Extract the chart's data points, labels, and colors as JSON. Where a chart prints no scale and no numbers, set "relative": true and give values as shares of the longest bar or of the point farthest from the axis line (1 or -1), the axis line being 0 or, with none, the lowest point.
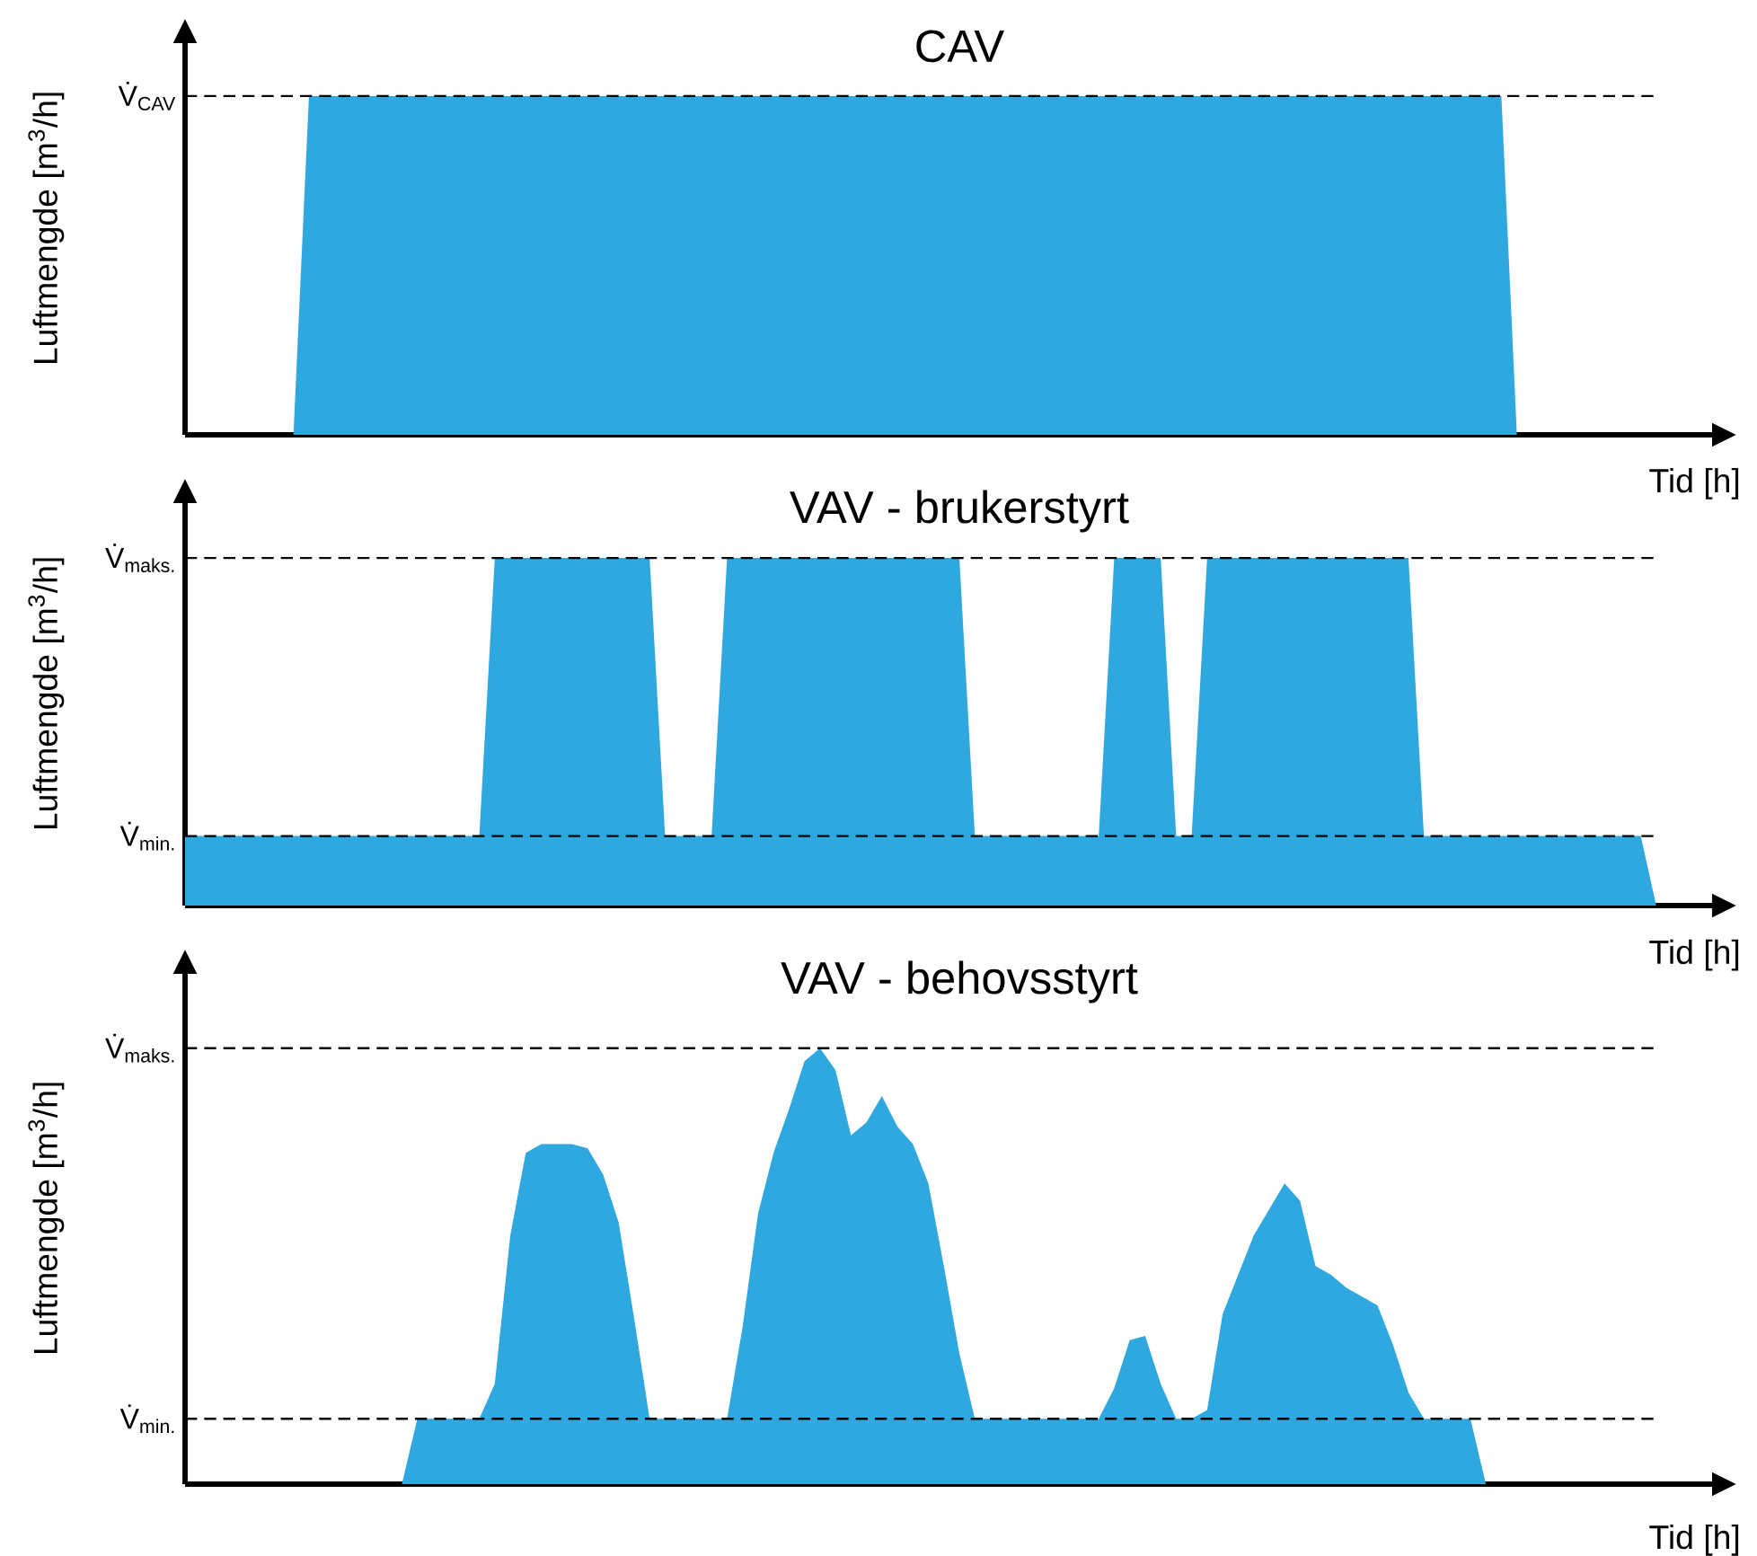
{
  "chart_data": [
    {
      "type": "area",
      "title": "CAV",
      "xlabel": "Tid [h]",
      "ylabel": "Luftmengde [m$^{3}$/h]",
      "relative": true,
      "color": "#2ea8df",
      "categories": [
        null,
        null,
        null,
        null,
        null,
        null,
        null,
        null,
        null,
        null,
        null,
        null,
        null,
        null,
        null,
        null,
        null,
        null,
        null,
        null,
        null,
        null,
        null,
        null,
        null,
        null,
        null,
        null,
        null,
        null,
        null,
        null,
        null,
        null,
        null,
        null,
        null,
        null,
        null,
        null,
        null,
        null,
        null,
        null,
        null,
        null,
        null,
        null,
        null,
        null,
        null,
        null,
        null,
        null,
        null,
        null,
        null,
        null,
        null,
        null,
        null,
        null,
        null,
        null,
        null,
        null,
        null,
        null,
        null,
        null,
        null,
        null,
        null,
        null,
        null,
        null,
        null,
        null,
        null,
        null,
        null,
        null,
        null,
        null,
        null,
        null,
        null,
        null,
        null,
        null,
        null,
        null,
        null,
        null,
        null,
        null
      ],
      "values": [
        0,
        0,
        0,
        0,
        0,
        0,
        0,
        0,
        1,
        1,
        1,
        1,
        1,
        1,
        1,
        1,
        1,
        1,
        1,
        1,
        1,
        1,
        1,
        1,
        1,
        1,
        1,
        1,
        1,
        1,
        1,
        1,
        1,
        1,
        1,
        1,
        1,
        1,
        1,
        1,
        1,
        1,
        1,
        1,
        1,
        1,
        1,
        1,
        1,
        1,
        1,
        1,
        1,
        1,
        1,
        1,
        1,
        1,
        1,
        1,
        1,
        1,
        1,
        1,
        1,
        1,
        1,
        1,
        1,
        1,
        1,
        1,
        1,
        1,
        1,
        1,
        1,
        1,
        1,
        1,
        1,
        1,
        1,
        1,
        1,
        1,
        0,
        0,
        0,
        0,
        0,
        0,
        0,
        0,
        0,
        0
      ],
      "ref_lines": [
        {
          "axis": "y",
          "value": 1,
          "label": "V̇$_{CAV}$",
          "line_style": "dashed"
        }
      ]
    },
    {
      "type": "area",
      "title": "VAV - brukerstyrt",
      "xlabel": "Tid [h]",
      "ylabel": "Luftmengde [m$^{3}$/h]",
      "relative": true,
      "color": "#2ea8df",
      "categories": [
        null,
        null,
        null,
        null,
        null,
        null,
        null,
        null,
        null,
        null,
        null,
        null,
        null,
        null,
        null,
        null,
        null,
        null,
        null,
        null,
        null,
        null,
        null,
        null,
        null,
        null,
        null,
        null,
        null,
        null,
        null,
        null,
        null,
        null,
        null,
        null,
        null,
        null,
        null,
        null,
        null,
        null,
        null,
        null,
        null,
        null,
        null,
        null,
        null,
        null,
        null,
        null,
        null,
        null,
        null,
        null,
        null,
        null,
        null,
        null,
        null,
        null,
        null,
        null,
        null,
        null,
        null,
        null,
        null,
        null,
        null,
        null,
        null,
        null,
        null,
        null,
        null,
        null,
        null,
        null,
        null,
        null,
        null,
        null,
        null,
        null,
        null,
        null,
        null,
        null,
        null,
        null,
        null,
        null,
        null,
        null
      ],
      "values": [
        0.2,
        0.2,
        0.2,
        0.2,
        0.2,
        0.2,
        0.2,
        0.2,
        0.2,
        0.2,
        0.2,
        0.2,
        0.2,
        0.2,
        0.2,
        0.2,
        0.2,
        0.2,
        0.2,
        0.2,
        1,
        1,
        1,
        1,
        1,
        1,
        1,
        1,
        1,
        1,
        1,
        0.2,
        0.2,
        0.2,
        0.2,
        1,
        1,
        1,
        1,
        1,
        1,
        1,
        1,
        1,
        1,
        1,
        1,
        1,
        1,
        1,
        1,
        0.2,
        0.2,
        0.2,
        0.2,
        0.2,
        0.2,
        0.2,
        0.2,
        0.2,
        1,
        1,
        1,
        1,
        0.2,
        0.2,
        1,
        1,
        1,
        1,
        1,
        1,
        1,
        1,
        1,
        1,
        1,
        1,
        1,
        1,
        0.2,
        0.2,
        0.2,
        0.2,
        0.2,
        0.2,
        0.2,
        0.2,
        0.2,
        0.2,
        0.2,
        0.2,
        0.2,
        0.2,
        0.2,
        0
      ],
      "ref_lines": [
        {
          "axis": "y",
          "value": 1,
          "label": "V̇$_{maks.}$",
          "line_style": "dashed"
        },
        {
          "axis": "y",
          "value": 0.2,
          "label": "V̇$_{min.}$",
          "line_style": "dashed"
        }
      ]
    },
    {
      "type": "area",
      "title": "VAV - behovsstyrt",
      "xlabel": "Tid [h]",
      "ylabel": "Luftmengde [m$^{3}$/h]",
      "relative": true,
      "color": "#2ea8df",
      "categories": [
        null,
        null,
        null,
        null,
        null,
        null,
        null,
        null,
        null,
        null,
        null,
        null,
        null,
        null,
        null,
        null,
        null,
        null,
        null,
        null,
        null,
        null,
        null,
        null,
        null,
        null,
        null,
        null,
        null,
        null,
        null,
        null,
        null,
        null,
        null,
        null,
        null,
        null,
        null,
        null,
        null,
        null,
        null,
        null,
        null,
        null,
        null,
        null,
        null,
        null,
        null,
        null,
        null,
        null,
        null,
        null,
        null,
        null,
        null,
        null,
        null,
        null,
        null,
        null,
        null,
        null,
        null,
        null,
        null,
        null,
        null,
        null,
        null,
        null,
        null,
        null,
        null,
        null,
        null,
        null,
        null,
        null,
        null,
        null,
        null,
        null,
        null,
        null,
        null,
        null,
        null,
        null,
        null,
        null,
        null,
        null
      ],
      "values": [
        0,
        0,
        0,
        0,
        0,
        0,
        0,
        0,
        0,
        0,
        0,
        0,
        0,
        0,
        0,
        0.15,
        0.15,
        0.15,
        0.15,
        0.15,
        0.23,
        0.57,
        0.76,
        0.78,
        0.78,
        0.78,
        0.77,
        0.71,
        0.6,
        0.38,
        0.15,
        0.15,
        0.15,
        0.15,
        0.15,
        0.15,
        0.36,
        0.62,
        0.76,
        0.86,
        0.97,
        1,
        0.95,
        0.8,
        0.83,
        0.89,
        0.82,
        0.78,
        0.69,
        0.5,
        0.3,
        0.15,
        0.15,
        0.15,
        0.15,
        0.15,
        0.15,
        0.15,
        0.15,
        0.15,
        0.22,
        0.33,
        0.34,
        0.23,
        0.15,
        0.15,
        0.17,
        0.39,
        0.48,
        0.57,
        0.63,
        0.69,
        0.65,
        0.5,
        0.48,
        0.45,
        0.43,
        0.41,
        0.32,
        0.21,
        0.15,
        0.15,
        0.15,
        0.15,
        0,
        0,
        0,
        0,
        0,
        0,
        0,
        0,
        0,
        0,
        0,
        0
      ],
      "ref_lines": [
        {
          "axis": "y",
          "value": 1,
          "label": "V̇$_{maks.}$",
          "line_style": "dashed"
        },
        {
          "axis": "y",
          "value": 0.15,
          "label": "V̇$_{min.}$",
          "line_style": "dashed"
        }
      ]
    }
  ]
}
